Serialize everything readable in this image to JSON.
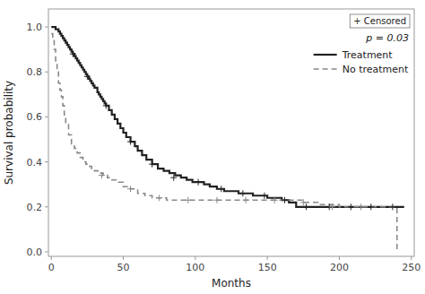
{
  "chart_data": {
    "type": "line",
    "x_label": "Months",
    "y_label": "Survival probability",
    "xlim": [
      -2,
      252
    ],
    "ylim": [
      -0.02,
      1.08
    ],
    "xticks": [
      0,
      50,
      100,
      150,
      200,
      250
    ],
    "yticks": [
      {
        "value": 0.0,
        "label": "0.0"
      },
      0.2,
      0.4,
      0.6,
      0.8,
      {
        "value": 1.0,
        "label": "1.0"
      }
    ],
    "grid": false,
    "legend": "upper right",
    "annotations": [
      "+ Censored",
      "p = 0.03"
    ],
    "series": [
      {
        "name": "Treatment",
        "type": "step",
        "color": "#222222",
        "line_style": "solid",
        "x": [
          0,
          2,
          3,
          5,
          6,
          7,
          8,
          9,
          10,
          11,
          12,
          13,
          14,
          15,
          16,
          17,
          18,
          19,
          20,
          21,
          22,
          23,
          24,
          25,
          26,
          27,
          28,
          29,
          30,
          32,
          33,
          34,
          35,
          36,
          37,
          38,
          40,
          42,
          44,
          46,
          48,
          50,
          52,
          55,
          58,
          60,
          63,
          66,
          70,
          74,
          78,
          82,
          86,
          90,
          94,
          98,
          102,
          106,
          110,
          115,
          120,
          125,
          130,
          135,
          140,
          145,
          150,
          155,
          160,
          165,
          170,
          175,
          180,
          185,
          190,
          195,
          200,
          205,
          210,
          245
        ],
        "values": [
          1.0,
          1.0,
          0.99,
          0.98,
          0.97,
          0.96,
          0.95,
          0.94,
          0.93,
          0.92,
          0.91,
          0.9,
          0.89,
          0.88,
          0.87,
          0.86,
          0.85,
          0.84,
          0.83,
          0.82,
          0.81,
          0.8,
          0.79,
          0.78,
          0.77,
          0.76,
          0.75,
          0.74,
          0.73,
          0.71,
          0.7,
          0.69,
          0.68,
          0.67,
          0.66,
          0.65,
          0.63,
          0.61,
          0.59,
          0.57,
          0.55,
          0.53,
          0.51,
          0.49,
          0.47,
          0.45,
          0.43,
          0.41,
          0.39,
          0.37,
          0.36,
          0.35,
          0.34,
          0.33,
          0.32,
          0.31,
          0.31,
          0.3,
          0.29,
          0.28,
          0.27,
          0.27,
          0.26,
          0.26,
          0.25,
          0.25,
          0.24,
          0.24,
          0.23,
          0.22,
          0.2,
          0.2,
          0.2,
          0.2,
          0.2,
          0.2,
          0.2,
          0.2,
          0.2,
          0.2
        ]
      },
      {
        "name": "No treatment",
        "type": "step",
        "color": "#888888",
        "line_style": "dashed",
        "x": [
          0,
          1,
          2,
          3,
          4,
          5,
          6,
          7,
          8,
          9,
          10,
          12,
          14,
          16,
          18,
          20,
          22,
          24,
          26,
          28,
          30,
          33,
          36,
          39,
          42,
          45,
          50,
          55,
          60,
          65,
          70,
          75,
          80,
          85,
          90,
          95,
          100,
          110,
          120,
          130,
          140,
          150,
          160,
          170,
          175,
          185,
          200,
          215,
          240,
          240
        ],
        "values": [
          0.97,
          0.95,
          0.9,
          0.85,
          0.8,
          0.75,
          0.72,
          0.69,
          0.65,
          0.61,
          0.57,
          0.52,
          0.48,
          0.46,
          0.44,
          0.42,
          0.4,
          0.39,
          0.38,
          0.37,
          0.36,
          0.35,
          0.34,
          0.33,
          0.32,
          0.31,
          0.29,
          0.28,
          0.26,
          0.25,
          0.24,
          0.24,
          0.23,
          0.23,
          0.23,
          0.23,
          0.23,
          0.23,
          0.23,
          0.23,
          0.23,
          0.23,
          0.23,
          0.23,
          0.22,
          0.21,
          0.2,
          0.2,
          0.2,
          0.0
        ]
      },
      {
        "type": "scatter",
        "marker": "plus",
        "color": "#222222",
        "x": [
          15,
          25,
          38,
          55,
          70,
          85,
          102,
          118,
          133,
          148,
          162,
          177,
          193,
          208,
          222,
          237
        ],
        "values": [
          0.88,
          0.78,
          0.65,
          0.49,
          0.39,
          0.33,
          0.31,
          0.28,
          0.26,
          0.25,
          0.23,
          0.2,
          0.2,
          0.2,
          0.2,
          0.2
        ]
      },
      {
        "type": "scatter",
        "marker": "plus",
        "color": "#888888",
        "x": [
          35,
          55,
          75,
          95,
          115,
          135,
          155,
          175,
          195,
          215
        ],
        "values": [
          0.34,
          0.28,
          0.24,
          0.23,
          0.23,
          0.23,
          0.23,
          0.22,
          0.2,
          0.2
        ]
      }
    ]
  }
}
